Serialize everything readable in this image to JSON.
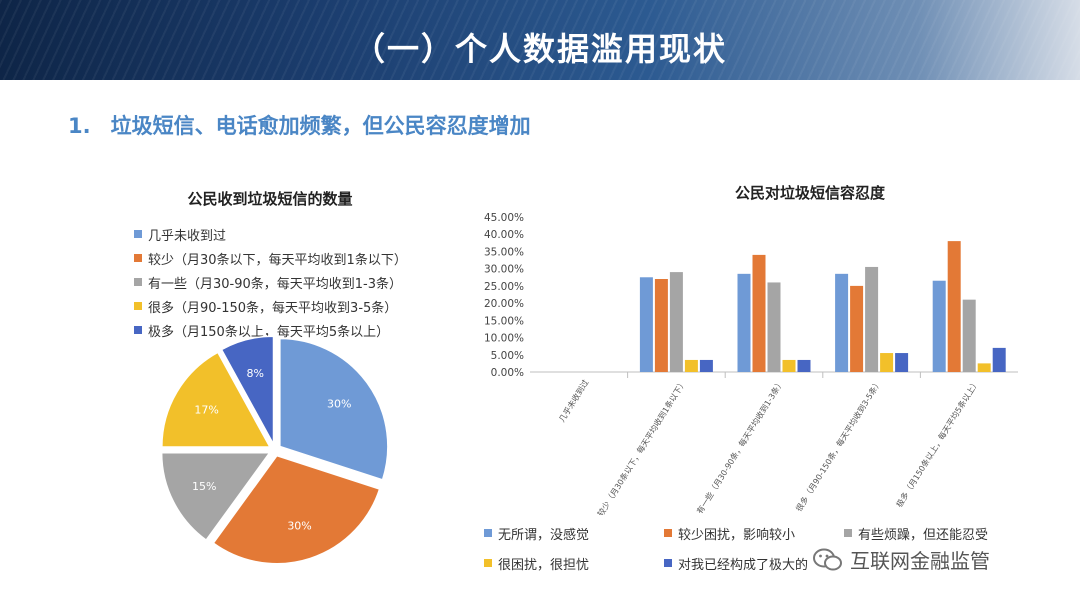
{
  "slide": {
    "title": "（一）个人数据滥用现状",
    "subtitle_num": "1.",
    "subtitle_text": "垃圾短信、电话愈加频繁，但公民容忍度增加"
  },
  "watermark": {
    "text": "互联网金融监管"
  },
  "colors": {
    "blue": "#6f9ad6",
    "orange": "#e37936",
    "gray": "#a5a5a5",
    "yellow": "#f2c02a",
    "navy": "#4766c3"
  },
  "chart_data": [
    {
      "type": "pie",
      "title": "公民收到垃圾短信的数量",
      "legend_placement": "top",
      "slices": [
        {
          "label": "几乎未收到过",
          "value": 30,
          "display": "30%",
          "color": "#6f9ad6"
        },
        {
          "label": "较少（月30条以下，每天平均收到1条以下）",
          "value": 30,
          "display": "30%",
          "color": "#e37936"
        },
        {
          "label": "有一些（月30-90条，每天平均收到1-3条）",
          "value": 15,
          "display": "15%",
          "color": "#a5a5a5"
        },
        {
          "label": "很多（月90-150条，每天平均收到3-5条）",
          "value": 17,
          "display": "17%",
          "color": "#f2c02a"
        },
        {
          "label": "极多（月150条以上，每天平均5条以上）",
          "value": 8,
          "display": "8%",
          "color": "#4766c3"
        }
      ]
    },
    {
      "type": "bar",
      "title": "公民对垃圾短信容忍度",
      "ylim": [
        0,
        45
      ],
      "yticks": [
        "0.00%",
        "5.00%",
        "10.00%",
        "15.00%",
        "20.00%",
        "25.00%",
        "30.00%",
        "35.00%",
        "40.00%",
        "45.00%"
      ],
      "legend_placement": "bottom",
      "categories": [
        "几乎未收到过",
        "较少（月30条以下，每天平均收到1条以下）",
        "有一些（月30-90条，每天平均收到1-3条）",
        "很多（月90-150条，每天平均收到3-5条）",
        "极多（月150条以上，每天平均5条以上）"
      ],
      "series": [
        {
          "name": "无所谓，没感觉",
          "color": "#6f9ad6",
          "values": [
            0,
            27.5,
            28.5,
            28.5,
            26.5
          ]
        },
        {
          "name": "较少困扰，影响较小",
          "color": "#e37936",
          "values": [
            0,
            27,
            34,
            25,
            38
          ]
        },
        {
          "name": "有些烦躁，但还能忍受",
          "color": "#a5a5a5",
          "values": [
            0,
            29,
            26,
            30.5,
            21
          ]
        },
        {
          "name": "很困扰，很担忧",
          "color": "#f2c02a",
          "values": [
            0,
            3.5,
            3.5,
            5.5,
            2.5
          ]
        },
        {
          "name": "对我已经构成了极大的",
          "color": "#4766c3",
          "values": [
            0,
            3.5,
            3.5,
            5.5,
            7
          ]
        }
      ]
    }
  ]
}
